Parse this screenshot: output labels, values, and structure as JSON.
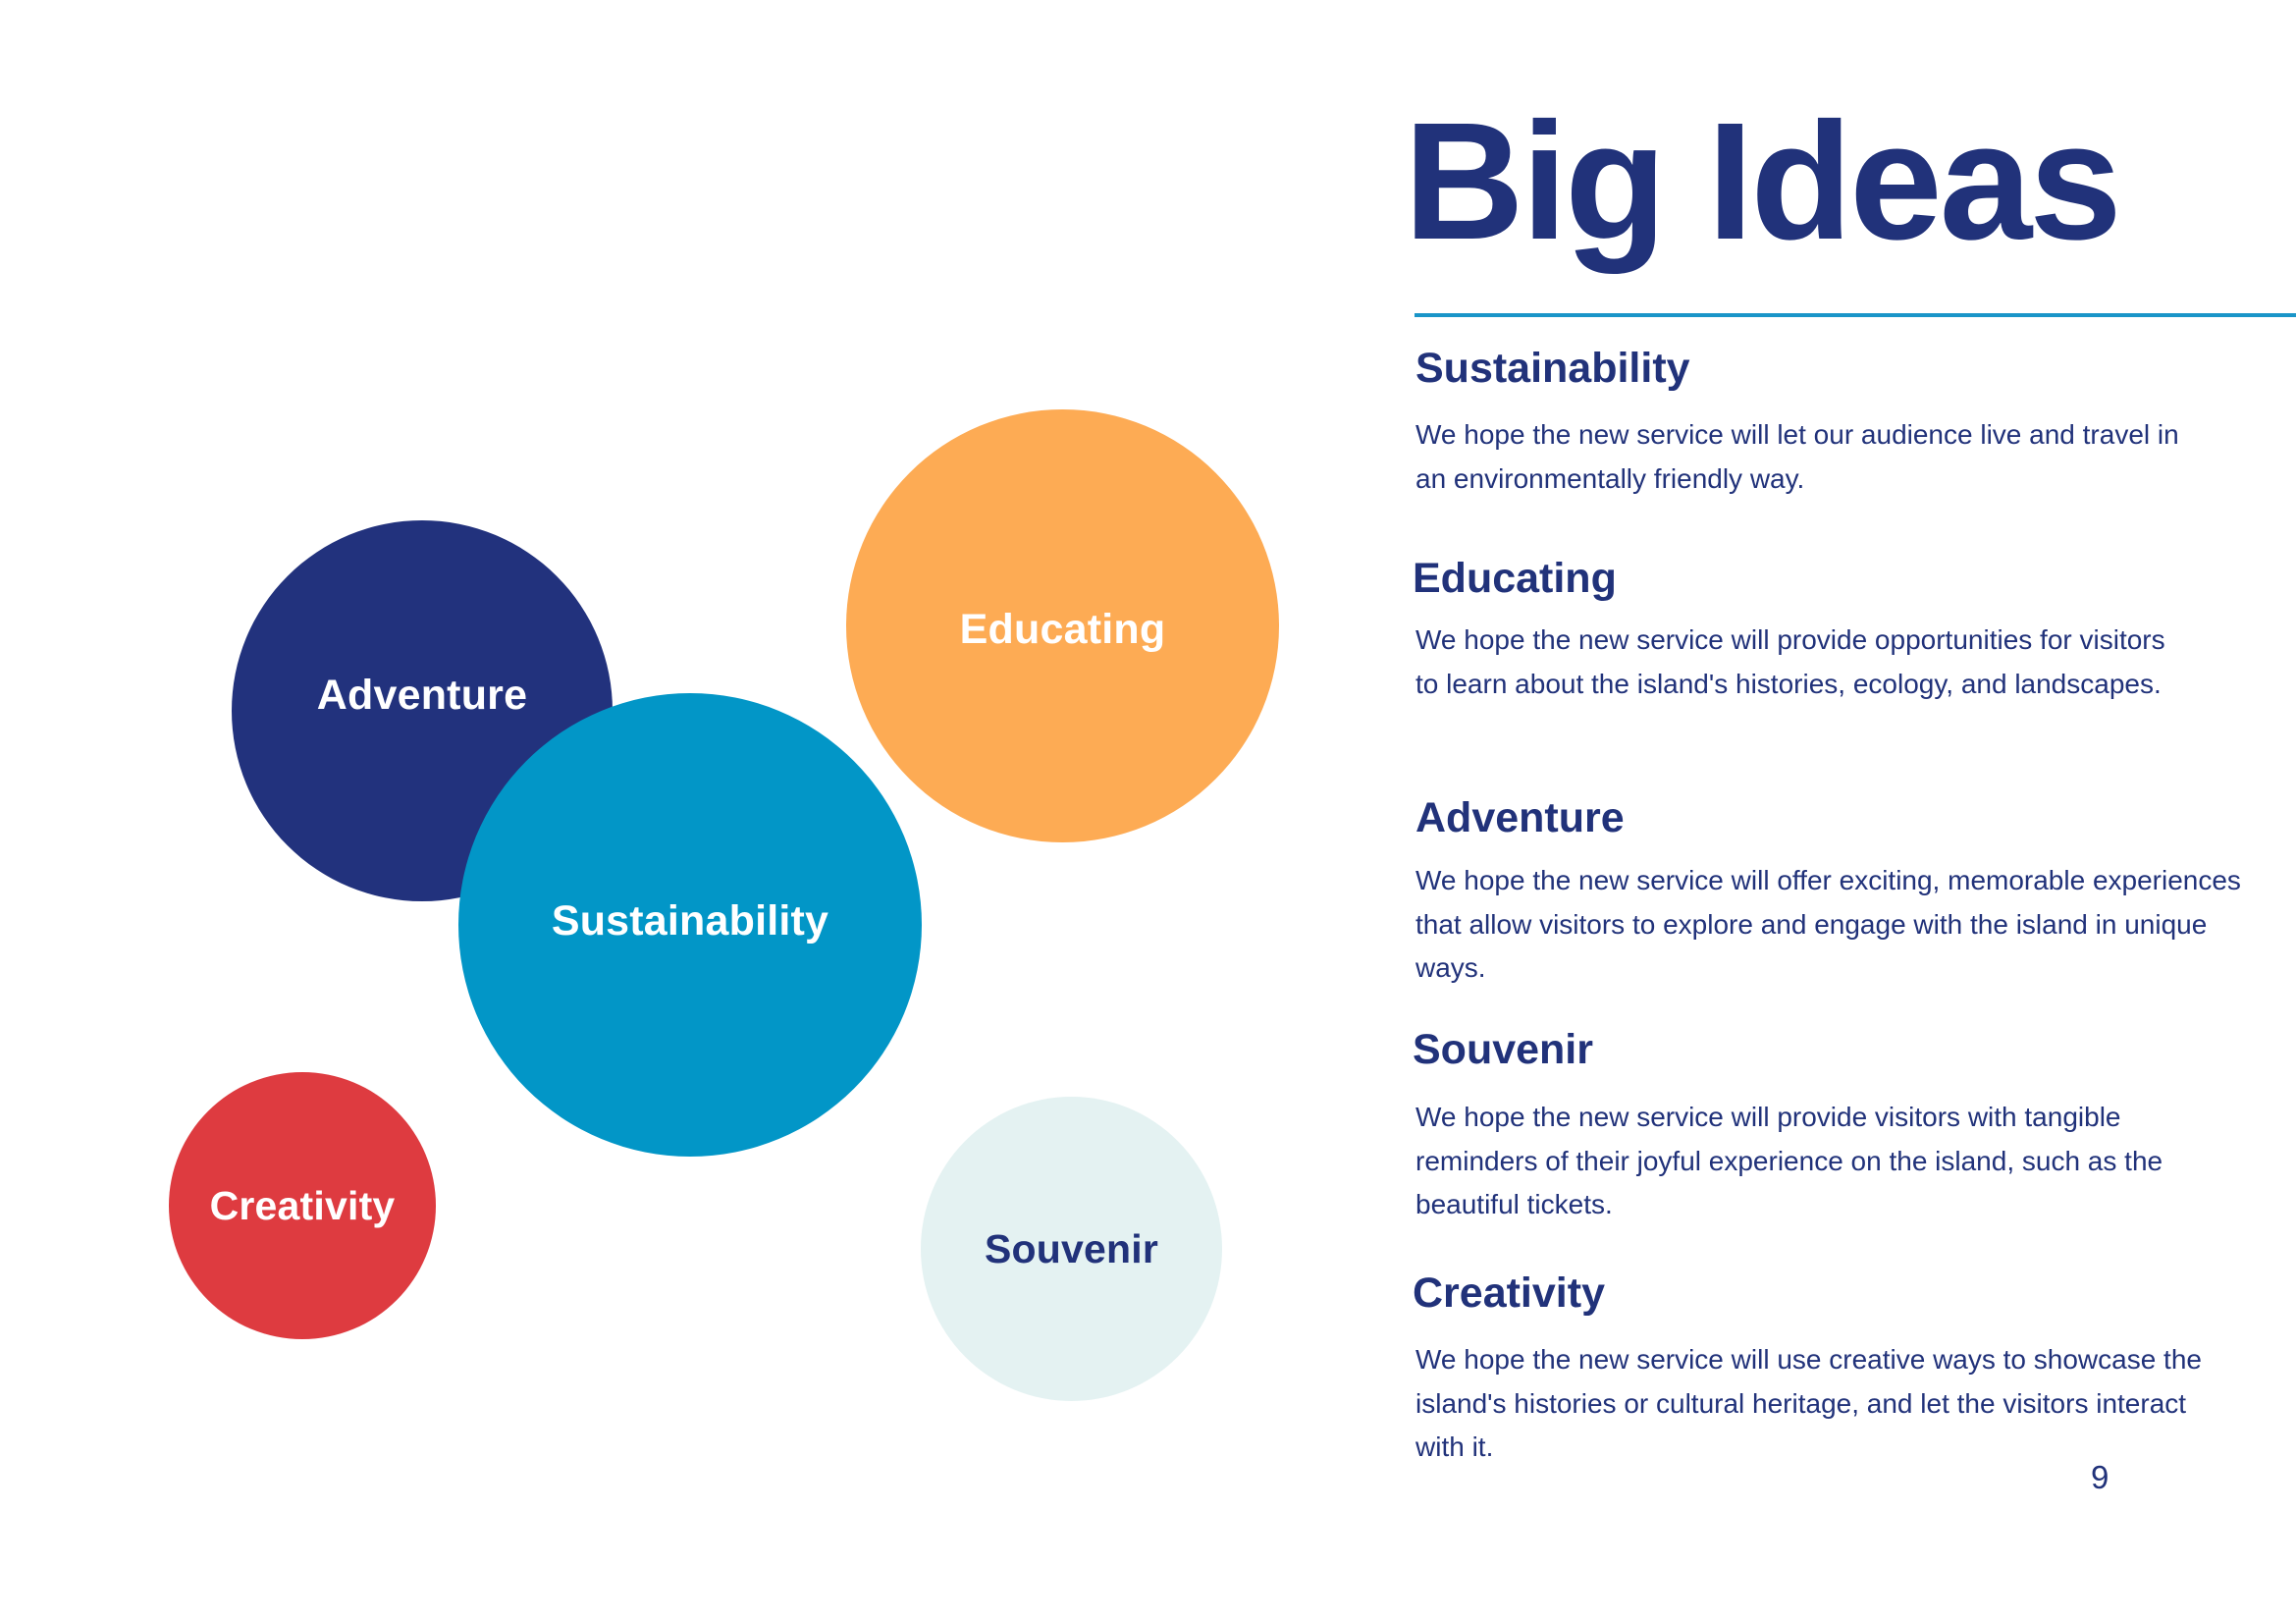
{
  "title": "Big Ideas",
  "bubbles": {
    "adventure": "Adventure",
    "sustainability": "Sustainability",
    "educating": "Educating",
    "creativity": "Creativity",
    "souvenir": "Souvenir"
  },
  "ideas": [
    {
      "title": "Sustainability",
      "description": "We hope the new service will let our audience live and travel in an environmentally friendly way."
    },
    {
      "title": "Educating",
      "description": "We hope the new service will provide opportunities for visitors to learn about the island's histories, ecology, and landscapes."
    },
    {
      "title": "Adventure",
      "description": "We hope the new service will offer exciting, memorable experiences that allow visitors to explore and engage with the island in unique ways."
    },
    {
      "title": "Souvenir",
      "description": "We hope the new service will  provide visitors with tangible reminders of their joyful experience on the island, such as the beautiful tickets."
    },
    {
      "title": "Creativity",
      "description": "We hope the new service will use creative ways to showcase the island's histories or cultural heritage, and let the visitors interact with it."
    }
  ],
  "page_number": "9",
  "colors": {
    "navy": "#22327d",
    "blue": "#0296c7",
    "orange": "#fdab54",
    "red": "#de3b40",
    "mint": "#e4f2f2",
    "text": "#21327a"
  }
}
